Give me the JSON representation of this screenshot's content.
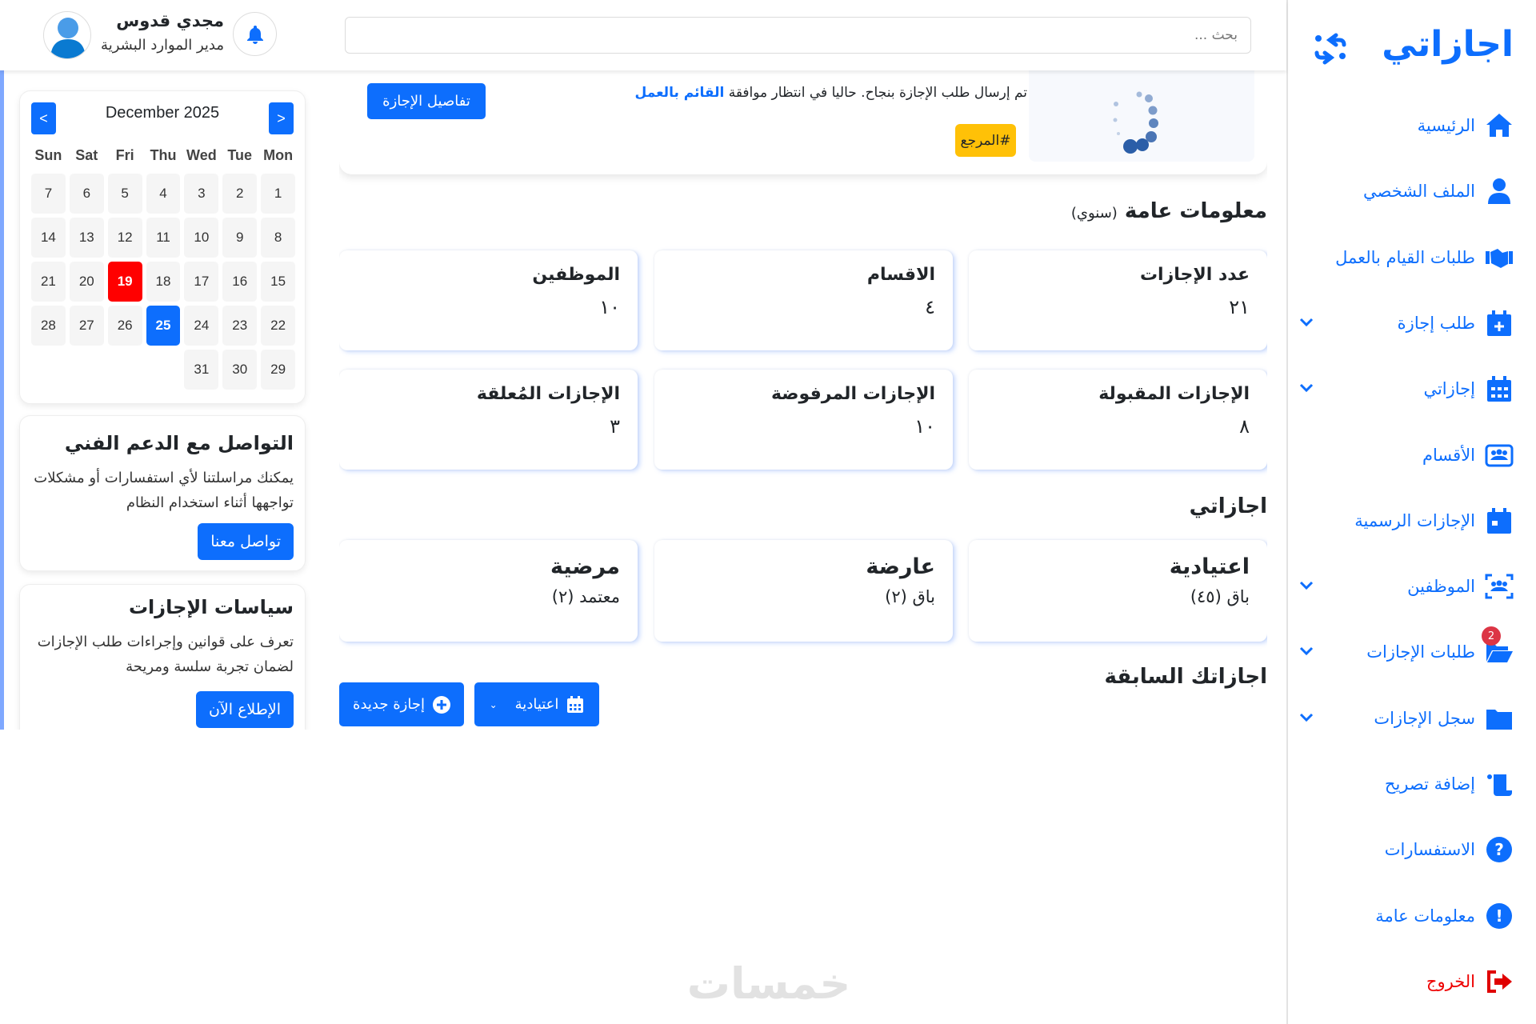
{
  "brand": {
    "title": "اجازاتي",
    "accent": "#0d6efd"
  },
  "sidebar": {
    "items": [
      {
        "label": "الرئيسية",
        "icon": "home-icon"
      },
      {
        "label": "الملف الشخصي",
        "icon": "user-icon"
      },
      {
        "label": "طلبات القيام بالعمل",
        "icon": "handshake-icon"
      },
      {
        "label": "طلب إجازة",
        "icon": "calendar-plus-icon",
        "expandable": true
      },
      {
        "label": "إجازاتي",
        "icon": "calendar-days-icon",
        "expandable": true
      },
      {
        "label": "الأقسام",
        "icon": "users-rectangle-icon"
      },
      {
        "label": "الإجازات الرسمية",
        "icon": "calendar-day-icon"
      },
      {
        "label": "الموظفين",
        "icon": "users-viewfinder-icon",
        "expandable": true
      },
      {
        "label": "طلبات الإجازات",
        "icon": "folder-open-icon",
        "expandable": true,
        "badge": "2"
      },
      {
        "label": "سجل الإجازات",
        "icon": "folder-icon",
        "expandable": true
      },
      {
        "label": "إضافة تصريح",
        "icon": "scroll-icon"
      },
      {
        "label": "الاستفسارات",
        "icon": "question-circle-icon"
      },
      {
        "label": "معلومات عامة",
        "icon": "exclamation-circle-icon"
      },
      {
        "label": "الخروج",
        "icon": "logout-icon",
        "color": "#e00000"
      }
    ]
  },
  "header": {
    "search_placeholder": "بحث ...",
    "user_name": "مجدي قدوس",
    "user_role": "مدير الموارد البشرية"
  },
  "calendar": {
    "month": "December 2025",
    "prev": "<",
    "next": ">",
    "weekdays": [
      "Mon",
      "Tue",
      "Wed",
      "Thu",
      "Fri",
      "Sat",
      "Sun"
    ],
    "days": [
      "1",
      "2",
      "3",
      "4",
      "5",
      "6",
      "7",
      "8",
      "9",
      "10",
      "11",
      "12",
      "13",
      "14",
      "15",
      "16",
      "17",
      "18",
      "19",
      "20",
      "21",
      "22",
      "23",
      "24",
      "25",
      "26",
      "27",
      "28",
      "29",
      "30",
      "31"
    ],
    "highlighted_day": "19",
    "highlight_color": "#ff0000",
    "today": "25"
  },
  "support": {
    "title": "التواصل مع الدعم الفني",
    "text": "يمكنك مراسلتنا لأي استفسارات أو مشكلات تواجهها أثناء استخدام النظام",
    "button": "تواصل معنا"
  },
  "policies": {
    "title": "سياسات الإجازات",
    "text": "تعرف على قوانين وإجراءات طلب الإجازات لضمان تجربة سلسة ومريحة",
    "button": "الإطلاع الآن"
  },
  "request_card": {
    "message": "تم إرسال طلب الإجازة بنجاح. حاليا في انتظار موافقة",
    "message_highlight": "القائم بالعمل",
    "reference": "#المرجع",
    "details_button": "تفاصيل الإجازة"
  },
  "general_info": {
    "title": "معلومات عامة",
    "subtitle": "(سنوي)",
    "stats": [
      {
        "label": "عدد الإجازات",
        "value": "٢١"
      },
      {
        "label": "الاقسام",
        "value": "٤"
      },
      {
        "label": "الموظفين",
        "value": "١٠"
      },
      {
        "label": "الإجازات المقبولة",
        "value": "٨"
      },
      {
        "label": "الإجازات المرفوضة",
        "value": "١٠"
      },
      {
        "label": "الإجازات المُعلقة",
        "value": "٣"
      }
    ]
  },
  "my_leaves": {
    "title": "اجازاتي",
    "cards": [
      {
        "label": "اعتيادية",
        "value": "باق (٤٥)"
      },
      {
        "label": "عارضة",
        "value": "باق (٢)"
      },
      {
        "label": "مرضية",
        "value": "معتمد (٢)"
      }
    ]
  },
  "previous": {
    "title": "اجازاتك السابقة",
    "filter_selected": "اعتيادية",
    "new_button": "إجازة جديدة"
  },
  "watermark": {
    "text": "خمسات"
  }
}
